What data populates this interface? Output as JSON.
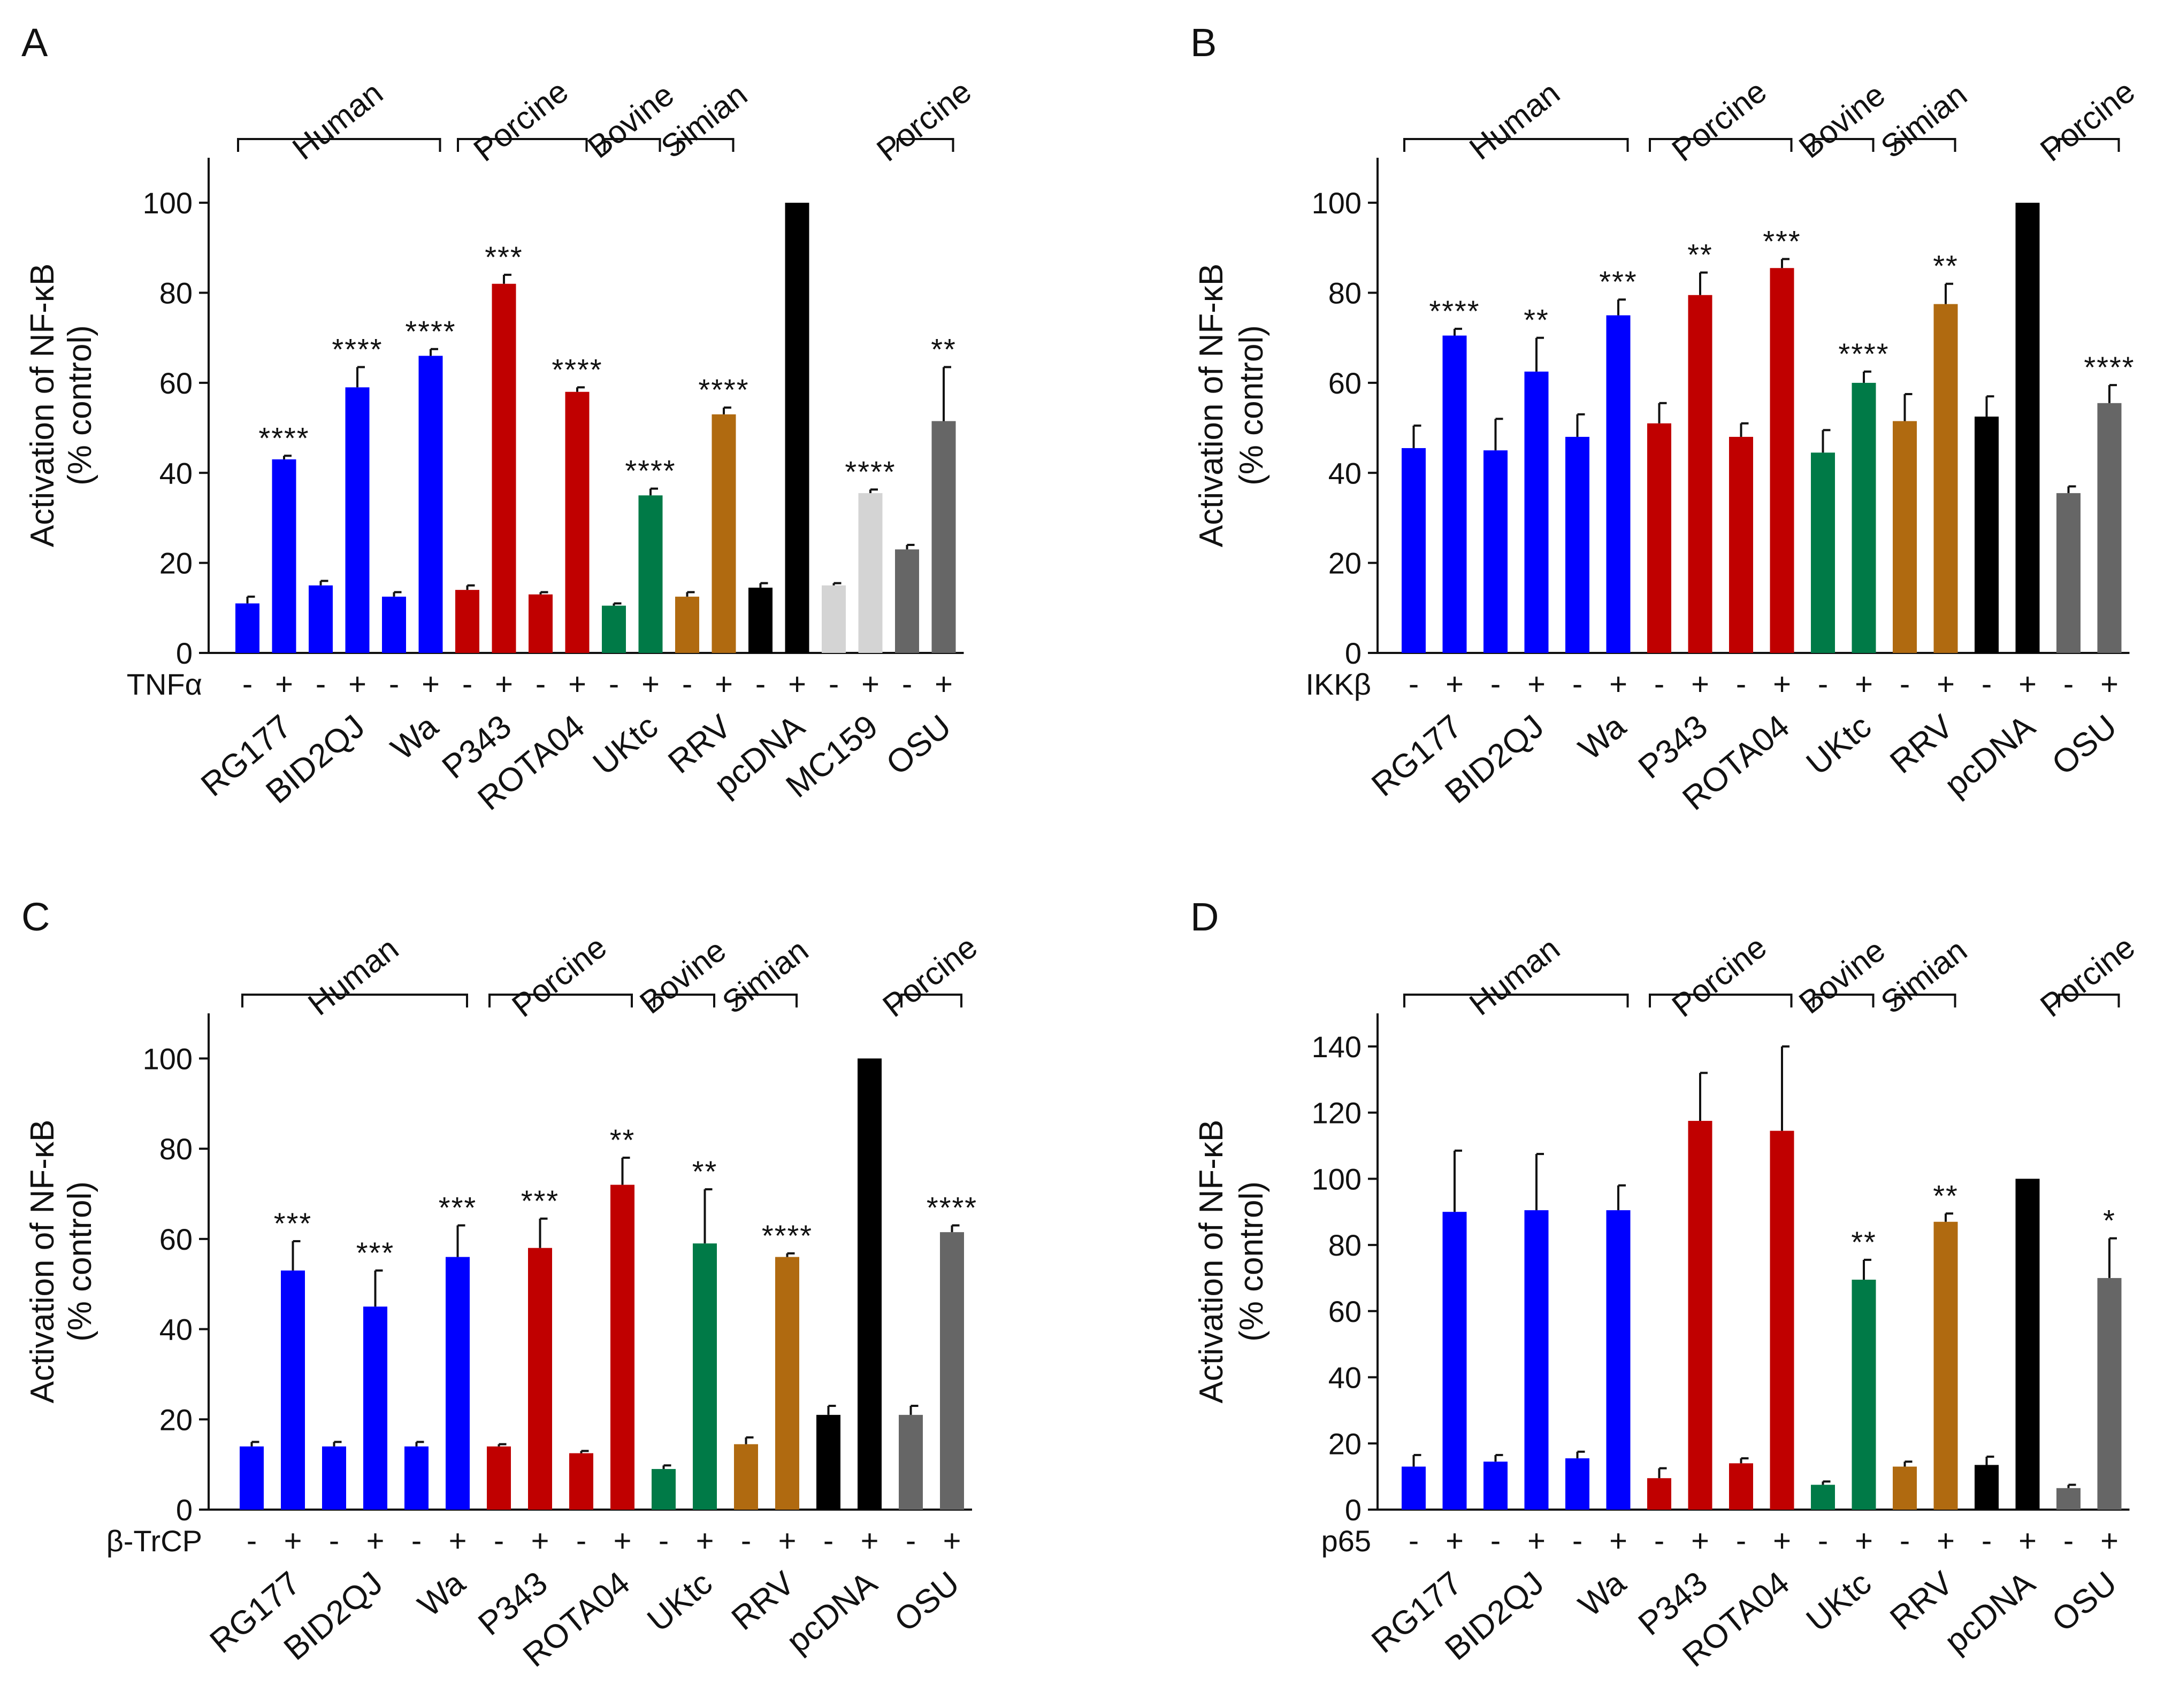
{
  "colors": {
    "human": "#0000ff",
    "porcine": "#c00000",
    "bovine": "#007a47",
    "simian": "#b06a10",
    "pcdna": "#000000",
    "mc159": "#d4d4d4",
    "osu": "#666666"
  },
  "chart_data": [
    {
      "type": "bar",
      "panel": "A",
      "ylabel_line1": "Activation of NF-κB",
      "ylabel_line2": "(% control)",
      "ylim": [
        0,
        110
      ],
      "yticks": [
        0,
        20,
        40,
        60,
        80,
        100
      ],
      "treatment_label": "TNFα",
      "samples": [
        {
          "name": "RG177",
          "group": "human",
          "bars": [
            {
              "sign": "-",
              "value": 11,
              "error": 1.5,
              "stars": ""
            },
            {
              "sign": "+",
              "value": 43,
              "error": 0.8,
              "stars": "****"
            }
          ]
        },
        {
          "name": "BID2QJ",
          "group": "human",
          "bars": [
            {
              "sign": "-",
              "value": 15,
              "error": 1,
              "stars": ""
            },
            {
              "sign": "+",
              "value": 59,
              "error": 4.5,
              "stars": "****"
            }
          ]
        },
        {
          "name": "Wa",
          "group": "human",
          "bars": [
            {
              "sign": "-",
              "value": 12.5,
              "error": 1,
              "stars": ""
            },
            {
              "sign": "+",
              "value": 66,
              "error": 1.5,
              "stars": "****"
            }
          ]
        },
        {
          "name": "P343",
          "group": "porcine",
          "bars": [
            {
              "sign": "-",
              "value": 14,
              "error": 1,
              "stars": ""
            },
            {
              "sign": "+",
              "value": 82,
              "error": 2,
              "stars": "***"
            }
          ]
        },
        {
          "name": "ROTA04",
          "group": "porcine",
          "bars": [
            {
              "sign": "-",
              "value": 13,
              "error": 0.5,
              "stars": ""
            },
            {
              "sign": "+",
              "value": 58,
              "error": 1,
              "stars": "****"
            }
          ]
        },
        {
          "name": "UKtc",
          "group": "bovine",
          "bars": [
            {
              "sign": "-",
              "value": 10.5,
              "error": 0.5,
              "stars": ""
            },
            {
              "sign": "+",
              "value": 35,
              "error": 1.5,
              "stars": "****"
            }
          ]
        },
        {
          "name": "RRV",
          "group": "simian",
          "bars": [
            {
              "sign": "-",
              "value": 12.5,
              "error": 1,
              "stars": ""
            },
            {
              "sign": "+",
              "value": 53,
              "error": 1.5,
              "stars": "****"
            }
          ]
        },
        {
          "name": "pcDNA",
          "group": "pcdna",
          "bars": [
            {
              "sign": "-",
              "value": 14.5,
              "error": 1,
              "stars": ""
            },
            {
              "sign": "+",
              "value": 100,
              "error": 0,
              "stars": ""
            }
          ]
        },
        {
          "name": "MC159",
          "group": "mc159",
          "bars": [
            {
              "sign": "-",
              "value": 15,
              "error": 0.5,
              "stars": ""
            },
            {
              "sign": "+",
              "value": 35.5,
              "error": 0.8,
              "stars": "****"
            }
          ]
        },
        {
          "name": "OSU",
          "group": "osu",
          "bars": [
            {
              "sign": "-",
              "value": 23,
              "error": 1,
              "stars": ""
            },
            {
              "sign": "+",
              "value": 51.5,
              "error": 12,
              "stars": "**"
            }
          ]
        }
      ],
      "species_brackets": [
        {
          "label": "Human",
          "from": 0,
          "to": 2
        },
        {
          "label": "Porcine",
          "from": 3,
          "to": 4
        },
        {
          "label": "Bovine",
          "from": 5,
          "to": 5
        },
        {
          "label": "Simian",
          "from": 6,
          "to": 6
        },
        {
          "label": "Porcine",
          "from": 9,
          "to": 9
        }
      ]
    },
    {
      "type": "bar",
      "panel": "B",
      "ylabel_line1": "Activation of NF-κB",
      "ylabel_line2": "(% control)",
      "ylim": [
        0,
        110
      ],
      "yticks": [
        0,
        20,
        40,
        60,
        80,
        100
      ],
      "treatment_label": "IKKβ",
      "samples": [
        {
          "name": "RG177",
          "group": "human",
          "bars": [
            {
              "sign": "-",
              "value": 45.5,
              "error": 5,
              "stars": ""
            },
            {
              "sign": "+",
              "value": 70.5,
              "error": 1.5,
              "stars": "****"
            }
          ]
        },
        {
          "name": "BID2QJ",
          "group": "human",
          "bars": [
            {
              "sign": "-",
              "value": 45,
              "error": 7,
              "stars": ""
            },
            {
              "sign": "+",
              "value": 62.5,
              "error": 7.5,
              "stars": "**"
            }
          ]
        },
        {
          "name": "Wa",
          "group": "human",
          "bars": [
            {
              "sign": "-",
              "value": 48,
              "error": 5,
              "stars": ""
            },
            {
              "sign": "+",
              "value": 75,
              "error": 3.5,
              "stars": "***"
            }
          ]
        },
        {
          "name": "P343",
          "group": "porcine",
          "bars": [
            {
              "sign": "-",
              "value": 51,
              "error": 4.5,
              "stars": ""
            },
            {
              "sign": "+",
              "value": 79.5,
              "error": 5,
              "stars": "**"
            }
          ]
        },
        {
          "name": "ROTA04",
          "group": "porcine",
          "bars": [
            {
              "sign": "-",
              "value": 48,
              "error": 3,
              "stars": ""
            },
            {
              "sign": "+",
              "value": 85.5,
              "error": 2,
              "stars": "***"
            }
          ]
        },
        {
          "name": "UKtc",
          "group": "bovine",
          "bars": [
            {
              "sign": "-",
              "value": 44.5,
              "error": 5,
              "stars": ""
            },
            {
              "sign": "+",
              "value": 60,
              "error": 2.5,
              "stars": "****"
            }
          ]
        },
        {
          "name": "RRV",
          "group": "simian",
          "bars": [
            {
              "sign": "-",
              "value": 51.5,
              "error": 6,
              "stars": ""
            },
            {
              "sign": "+",
              "value": 77.5,
              "error": 4.5,
              "stars": "**"
            }
          ]
        },
        {
          "name": "pcDNA",
          "group": "pcdna",
          "bars": [
            {
              "sign": "-",
              "value": 52.5,
              "error": 4.5,
              "stars": ""
            },
            {
              "sign": "+",
              "value": 100,
              "error": 0,
              "stars": ""
            }
          ]
        },
        {
          "name": "OSU",
          "group": "osu",
          "bars": [
            {
              "sign": "-",
              "value": 35.5,
              "error": 1.5,
              "stars": ""
            },
            {
              "sign": "+",
              "value": 55.5,
              "error": 4,
              "stars": "****"
            }
          ]
        }
      ],
      "species_brackets": [
        {
          "label": "Human",
          "from": 0,
          "to": 2
        },
        {
          "label": "Porcine",
          "from": 3,
          "to": 4
        },
        {
          "label": "Bovine",
          "from": 5,
          "to": 5
        },
        {
          "label": "Simian",
          "from": 6,
          "to": 6
        },
        {
          "label": "Porcine",
          "from": 8,
          "to": 8
        }
      ]
    },
    {
      "type": "bar",
      "panel": "C",
      "ylabel_line1": "Activation of NF-κB",
      "ylabel_line2": "(% control)",
      "ylim": [
        0,
        110
      ],
      "yticks": [
        0,
        20,
        40,
        60,
        80,
        100
      ],
      "treatment_label": "β-TrCP",
      "samples": [
        {
          "name": "RG177",
          "group": "human",
          "bars": [
            {
              "sign": "-",
              "value": 14,
              "error": 1,
              "stars": ""
            },
            {
              "sign": "+",
              "value": 53,
              "error": 6.5,
              "stars": "***"
            }
          ]
        },
        {
          "name": "BID2QJ",
          "group": "human",
          "bars": [
            {
              "sign": "-",
              "value": 14,
              "error": 1,
              "stars": ""
            },
            {
              "sign": "+",
              "value": 45,
              "error": 8,
              "stars": "***"
            }
          ]
        },
        {
          "name": "Wa",
          "group": "human",
          "bars": [
            {
              "sign": "-",
              "value": 14,
              "error": 1,
              "stars": ""
            },
            {
              "sign": "+",
              "value": 56,
              "error": 7,
              "stars": "***"
            }
          ]
        },
        {
          "name": "P343",
          "group": "porcine",
          "bars": [
            {
              "sign": "-",
              "value": 14,
              "error": 0.5,
              "stars": ""
            },
            {
              "sign": "+",
              "value": 58,
              "error": 6.5,
              "stars": "***"
            }
          ]
        },
        {
          "name": "ROTA04",
          "group": "porcine",
          "bars": [
            {
              "sign": "-",
              "value": 12.5,
              "error": 0.5,
              "stars": ""
            },
            {
              "sign": "+",
              "value": 72,
              "error": 6,
              "stars": "**"
            }
          ]
        },
        {
          "name": "UKtc",
          "group": "bovine",
          "bars": [
            {
              "sign": "-",
              "value": 9,
              "error": 0.8,
              "stars": ""
            },
            {
              "sign": "+",
              "value": 59,
              "error": 12,
              "stars": "**"
            }
          ]
        },
        {
          "name": "RRV",
          "group": "simian",
          "bars": [
            {
              "sign": "-",
              "value": 14.5,
              "error": 1.5,
              "stars": ""
            },
            {
              "sign": "+",
              "value": 56,
              "error": 0.8,
              "stars": "****"
            }
          ]
        },
        {
          "name": "pcDNA",
          "group": "pcdna",
          "bars": [
            {
              "sign": "-",
              "value": 21,
              "error": 2,
              "stars": ""
            },
            {
              "sign": "+",
              "value": 100,
              "error": 0,
              "stars": ""
            }
          ]
        },
        {
          "name": "OSU",
          "group": "osu",
          "bars": [
            {
              "sign": "-",
              "value": 21,
              "error": 2,
              "stars": ""
            },
            {
              "sign": "+",
              "value": 61.5,
              "error": 1.5,
              "stars": "****"
            }
          ]
        }
      ],
      "species_brackets": [
        {
          "label": "Human",
          "from": 0,
          "to": 2
        },
        {
          "label": "Porcine",
          "from": 3,
          "to": 4
        },
        {
          "label": "Bovine",
          "from": 5,
          "to": 5
        },
        {
          "label": "Simian",
          "from": 6,
          "to": 6
        },
        {
          "label": "Porcine",
          "from": 8,
          "to": 8
        }
      ]
    },
    {
      "type": "bar",
      "panel": "D",
      "ylabel_line1": "Activation of NF-κB",
      "ylabel_line2": "(% control)",
      "ylim": [
        0,
        150
      ],
      "yticks": [
        0,
        20,
        40,
        60,
        80,
        100,
        120,
        140
      ],
      "treatment_label": "p65",
      "samples": [
        {
          "name": "RG177",
          "group": "human",
          "bars": [
            {
              "sign": "-",
              "value": 13,
              "error": 3.5,
              "stars": ""
            },
            {
              "sign": "+",
              "value": 90,
              "error": 18.5,
              "stars": ""
            }
          ]
        },
        {
          "name": "BID2QJ",
          "group": "human",
          "bars": [
            {
              "sign": "-",
              "value": 14.5,
              "error": 2,
              "stars": ""
            },
            {
              "sign": "+",
              "value": 90.5,
              "error": 17,
              "stars": ""
            }
          ]
        },
        {
          "name": "Wa",
          "group": "human",
          "bars": [
            {
              "sign": "-",
              "value": 15.5,
              "error": 2,
              "stars": ""
            },
            {
              "sign": "+",
              "value": 90.5,
              "error": 7.5,
              "stars": ""
            }
          ]
        },
        {
          "name": "P343",
          "group": "porcine",
          "bars": [
            {
              "sign": "-",
              "value": 9.5,
              "error": 3,
              "stars": ""
            },
            {
              "sign": "+",
              "value": 117.5,
              "error": 14.5,
              "stars": ""
            }
          ]
        },
        {
          "name": "ROTA04",
          "group": "porcine",
          "bars": [
            {
              "sign": "-",
              "value": 14,
              "error": 1.5,
              "stars": ""
            },
            {
              "sign": "+",
              "value": 114.5,
              "error": 25.5,
              "stars": ""
            }
          ]
        },
        {
          "name": "UKtc",
          "group": "bovine",
          "bars": [
            {
              "sign": "-",
              "value": 7.5,
              "error": 1,
              "stars": ""
            },
            {
              "sign": "+",
              "value": 69.5,
              "error": 6,
              "stars": "**"
            }
          ]
        },
        {
          "name": "RRV",
          "group": "simian",
          "bars": [
            {
              "sign": "-",
              "value": 13,
              "error": 1.5,
              "stars": ""
            },
            {
              "sign": "+",
              "value": 87,
              "error": 2.5,
              "stars": "**"
            }
          ]
        },
        {
          "name": "pcDNA",
          "group": "pcdna",
          "bars": [
            {
              "sign": "-",
              "value": 13.5,
              "error": 2.5,
              "stars": ""
            },
            {
              "sign": "+",
              "value": 100,
              "error": 0,
              "stars": ""
            }
          ]
        },
        {
          "name": "OSU",
          "group": "osu",
          "bars": [
            {
              "sign": "-",
              "value": 6.5,
              "error": 1,
              "stars": ""
            },
            {
              "sign": "+",
              "value": 70,
              "error": 12,
              "stars": "*"
            }
          ]
        }
      ],
      "species_brackets": [
        {
          "label": "Human",
          "from": 0,
          "to": 2
        },
        {
          "label": "Porcine",
          "from": 3,
          "to": 4
        },
        {
          "label": "Bovine",
          "from": 5,
          "to": 5
        },
        {
          "label": "Simian",
          "from": 6,
          "to": 6
        },
        {
          "label": "Porcine",
          "from": 8,
          "to": 8
        }
      ]
    }
  ]
}
